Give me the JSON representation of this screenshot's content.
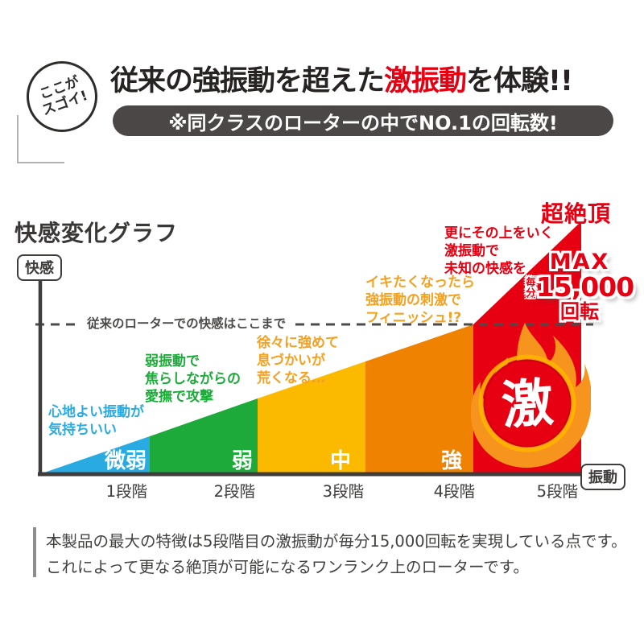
{
  "badge": {
    "line1": "ここが",
    "line2": "スゴイ!"
  },
  "header": {
    "title_pre": "従来の強振動を超えた",
    "title_em": "激振動",
    "title_post": "を体験!!",
    "subtitle": "※同クラスのローターの中でNO.1の回転数!"
  },
  "chart_data": {
    "type": "area",
    "title": "快感変化グラフ",
    "ylabel": "快感",
    "xlabel": "振動",
    "grid": false,
    "threshold": {
      "value": 185,
      "label": "従来のローターでの快感はここまで"
    },
    "categories": [
      "1段階",
      "2段階",
      "3段階",
      "4段階",
      "5段階"
    ],
    "levels": [
      {
        "stage": "1段階",
        "name": "微弱",
        "color": "#29abe2",
        "from": 0,
        "to": 46,
        "note": "心地よい振動が\n気持ちいい",
        "note_color": "#29abe2"
      },
      {
        "stage": "2段階",
        "name": "弱",
        "color": "#1ea93b",
        "from": 46,
        "to": 93,
        "note": "弱振動で\n焦らしながらの\n愛撫で攻撃",
        "note_color": "#1ea93b"
      },
      {
        "stage": "3段階",
        "name": "中",
        "color": "#fbba00",
        "from": 93,
        "to": 139,
        "note": "徐々に強めて\n息づかいが\n荒くなる…",
        "note_color": "#f5a11f"
      },
      {
        "stage": "4段階",
        "name": "強",
        "color": "#ef8200",
        "from": 139,
        "to": 185,
        "note": "イキたくなったら\n強振動の刺激で\nフィニッシュ!?",
        "note_color": "#f5a11f"
      },
      {
        "stage": "5段階",
        "name": "激",
        "color": "#e60012",
        "from": 185,
        "to": 313,
        "note": "更にその上をいく\n激振動で\n未知の快感を",
        "note_color": "#e60012"
      }
    ],
    "peak_label": "超絶頂",
    "max_badge": {
      "max": "MAX",
      "per": "毎分",
      "value": "15,000",
      "unit": "回転"
    }
  },
  "footer": {
    "line1": "本製品の最大の特徴は5段階目の激振動が毎分15,000回転を実現している点です。",
    "line2": "これによって更なる絶頂が可能になるワンランク上のローターです。"
  },
  "colors": {
    "accent_red": "#e60012",
    "axis": "#3f3c3c",
    "pill_bg": "#4b4746"
  }
}
